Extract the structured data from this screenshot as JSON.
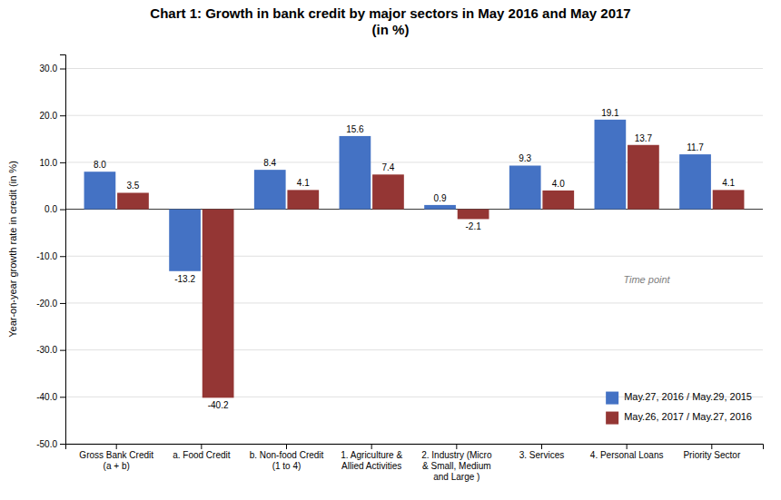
{
  "chart_data": {
    "type": "bar",
    "title": "Chart 1: Growth in bank credit by major sectors in May 2016 and May 2017\n(in %)",
    "categories": [
      "Gross Bank Credit\n(a + b)",
      "a. Food Credit",
      "b. Non-food Credit\n(1 to 4)",
      "1. Agriculture &\nAllied Activities",
      "2. Industry (Micro\n& Small, Medium\nand Large )",
      "3. Services",
      "4. Personal Loans",
      "Priority Sector"
    ],
    "series": [
      {
        "name": "May.27, 2016 / May.29, 2015",
        "color": "#4472C4",
        "values": [
          8.0,
          -13.2,
          8.4,
          15.6,
          0.9,
          9.3,
          19.1,
          11.7
        ],
        "value_labels": [
          "8.0",
          "-13.2",
          "8.4",
          "15.6",
          "0.9",
          "9.3",
          "19.1",
          "11.7"
        ]
      },
      {
        "name": "May.26, 2017 / May.27, 2016",
        "color": "#943634",
        "values": [
          3.5,
          -40.2,
          4.1,
          7.4,
          -2.1,
          4.0,
          13.7,
          4.1
        ],
        "value_labels": [
          "3.5",
          "-40.2",
          "4.1",
          "7.4",
          "-2.1",
          "4.0",
          "13.7",
          "4.1"
        ]
      }
    ],
    "ylabel": "Year-on-year growth rate in credit (in %)",
    "xlabel": "Time point",
    "ylim": [
      -50.0,
      33.0
    ],
    "yticks": [
      {
        "value": -50,
        "label": "-50.0"
      },
      {
        "value": -40,
        "label": "-40.0"
      },
      {
        "value": -30,
        "label": "-30.0"
      },
      {
        "value": -20,
        "label": "-20.0"
      },
      {
        "value": -10,
        "label": "-10.0"
      },
      {
        "value": 0,
        "label": "0.0"
      },
      {
        "value": 10,
        "label": "10.0"
      },
      {
        "value": 20,
        "label": "20.0"
      },
      {
        "value": 30,
        "label": "30.0"
      }
    ],
    "grid": true,
    "legend": "lower right",
    "data_labels": true
  }
}
